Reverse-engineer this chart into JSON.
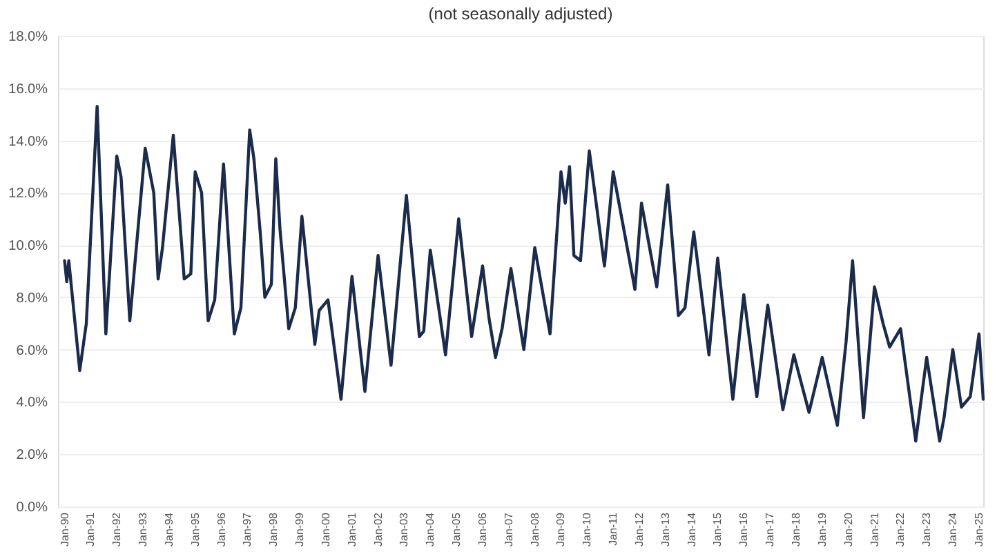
{
  "chart_data": {
    "type": "line",
    "title": "(not seasonally adjusted)",
    "x": [
      "1990-01",
      "1990-02",
      "1990-03",
      "1990-08",
      "1990-11",
      "1991-04",
      "1991-08",
      "1992-01",
      "1992-03",
      "1992-07",
      "1993-02",
      "1993-06",
      "1993-08",
      "1993-10",
      "1994-03",
      "1994-08",
      "1994-11",
      "1995-01",
      "1995-04",
      "1995-07",
      "1995-10",
      "1996-02",
      "1996-03",
      "1996-07",
      "1996-10",
      "1997-02",
      "1997-04",
      "1997-07",
      "1997-09",
      "1997-12",
      "1998-02",
      "1998-04",
      "1998-08",
      "1998-11",
      "1999-02",
      "1999-08",
      "1999-10",
      "2000-02",
      "2000-08",
      "2001-01",
      "2001-07",
      "2002-01",
      "2002-07",
      "2003-02",
      "2003-08",
      "2003-10",
      "2004-01",
      "2004-08",
      "2005-02",
      "2005-08",
      "2006-01",
      "2006-04",
      "2006-07",
      "2006-10",
      "2007-02",
      "2007-08",
      "2008-01",
      "2008-08",
      "2009-01",
      "2009-03",
      "2009-05",
      "2009-07",
      "2009-10",
      "2010-02",
      "2010-09",
      "2011-01",
      "2011-11",
      "2012-02",
      "2012-09",
      "2013-02",
      "2013-07",
      "2013-10",
      "2014-02",
      "2014-09",
      "2015-01",
      "2015-08",
      "2016-01",
      "2016-07",
      "2016-12",
      "2017-07",
      "2017-12",
      "2018-07",
      "2019-01",
      "2019-08",
      "2019-12",
      "2020-03",
      "2020-08",
      "2021-01",
      "2021-05",
      "2021-08",
      "2022-01",
      "2022-08",
      "2023-01",
      "2023-07",
      "2023-09",
      "2024-01",
      "2024-05",
      "2024-09",
      "2025-01",
      "2025-03"
    ],
    "series": [
      {
        "color": "#1b2b4b",
        "values": [
          9.4,
          8.6,
          9.4,
          5.2,
          7.0,
          15.3,
          6.6,
          13.4,
          12.6,
          7.1,
          13.7,
          12.0,
          8.7,
          9.9,
          14.2,
          8.7,
          8.9,
          12.8,
          12.0,
          7.1,
          7.9,
          13.1,
          11.9,
          6.6,
          7.6,
          14.4,
          13.3,
          10.4,
          8.0,
          8.5,
          13.3,
          10.6,
          6.8,
          7.6,
          11.1,
          6.2,
          7.5,
          7.9,
          4.1,
          8.8,
          4.4,
          9.6,
          5.4,
          11.9,
          6.5,
          6.7,
          9.8,
          5.8,
          11.0,
          6.5,
          9.2,
          7.2,
          5.7,
          6.8,
          9.1,
          6.0,
          9.9,
          6.6,
          12.8,
          11.6,
          13.0,
          9.6,
          9.4,
          13.6,
          9.2,
          12.8,
          8.3,
          11.6,
          8.4,
          12.3,
          7.3,
          7.6,
          10.5,
          5.8,
          9.5,
          4.1,
          8.1,
          4.2,
          7.7,
          3.7,
          5.8,
          3.6,
          5.7,
          3.1,
          6.3,
          9.4,
          3.4,
          8.4,
          7.0,
          6.1,
          6.8,
          2.5,
          5.7,
          2.5,
          3.4,
          6.0,
          3.8,
          4.2,
          6.6,
          4.1
        ]
      }
    ],
    "xlim": [
      "1989-10",
      "2025-03"
    ],
    "xticks": [
      {
        "value": "1990-01",
        "label": "Jan-90"
      },
      {
        "value": "1991-01",
        "label": "Jan-91"
      },
      {
        "value": "1992-01",
        "label": "Jan-92"
      },
      {
        "value": "1993-01",
        "label": "Jan-93"
      },
      {
        "value": "1994-01",
        "label": "Jan-94"
      },
      {
        "value": "1995-01",
        "label": "Jan-95"
      },
      {
        "value": "1996-01",
        "label": "Jan-96"
      },
      {
        "value": "1997-01",
        "label": "Jan-97"
      },
      {
        "value": "1998-01",
        "label": "Jan-98"
      },
      {
        "value": "1999-01",
        "label": "Jan-99"
      },
      {
        "value": "2000-01",
        "label": "Jan-00"
      },
      {
        "value": "2001-01",
        "label": "Jan-01"
      },
      {
        "value": "2002-01",
        "label": "Jan-02"
      },
      {
        "value": "2003-01",
        "label": "Jan-03"
      },
      {
        "value": "2004-01",
        "label": "Jan-04"
      },
      {
        "value": "2005-01",
        "label": "Jan-05"
      },
      {
        "value": "2006-01",
        "label": "Jan-06"
      },
      {
        "value": "2007-01",
        "label": "Jan-07"
      },
      {
        "value": "2008-01",
        "label": "Jan-08"
      },
      {
        "value": "2009-01",
        "label": "Jan-09"
      },
      {
        "value": "2010-01",
        "label": "Jan-10"
      },
      {
        "value": "2011-01",
        "label": "Jan-11"
      },
      {
        "value": "2012-01",
        "label": "Jan-12"
      },
      {
        "value": "2013-01",
        "label": "Jan-13"
      },
      {
        "value": "2014-01",
        "label": "Jan-14"
      },
      {
        "value": "2015-01",
        "label": "Jan-15"
      },
      {
        "value": "2016-01",
        "label": "Jan-16"
      },
      {
        "value": "2017-01",
        "label": "Jan-17"
      },
      {
        "value": "2018-01",
        "label": "Jan-18"
      },
      {
        "value": "2019-01",
        "label": "Jan-19"
      },
      {
        "value": "2020-01",
        "label": "Jan-20"
      },
      {
        "value": "2021-01",
        "label": "Jan-21"
      },
      {
        "value": "2022-01",
        "label": "Jan-22"
      },
      {
        "value": "2023-01",
        "label": "Jan-23"
      },
      {
        "value": "2024-01",
        "label": "Jan-24"
      },
      {
        "value": "2025-01",
        "label": "Jan-25"
      }
    ],
    "ylim": [
      0,
      18
    ],
    "yticks": [
      {
        "value": 0,
        "label": "0.0%"
      },
      {
        "value": 2,
        "label": "2.0%"
      },
      {
        "value": 4,
        "label": "4.0%"
      },
      {
        "value": 6,
        "label": "6.0%"
      },
      {
        "value": 8,
        "label": "8.0%"
      },
      {
        "value": 10,
        "label": "10.0%"
      },
      {
        "value": 12,
        "label": "12.0%"
      },
      {
        "value": 14,
        "label": "14.0%"
      },
      {
        "value": 16,
        "label": "16.0%"
      },
      {
        "value": 18,
        "label": "18.0%"
      }
    ],
    "grid": "y",
    "marker": "none",
    "line_style": "solid"
  }
}
